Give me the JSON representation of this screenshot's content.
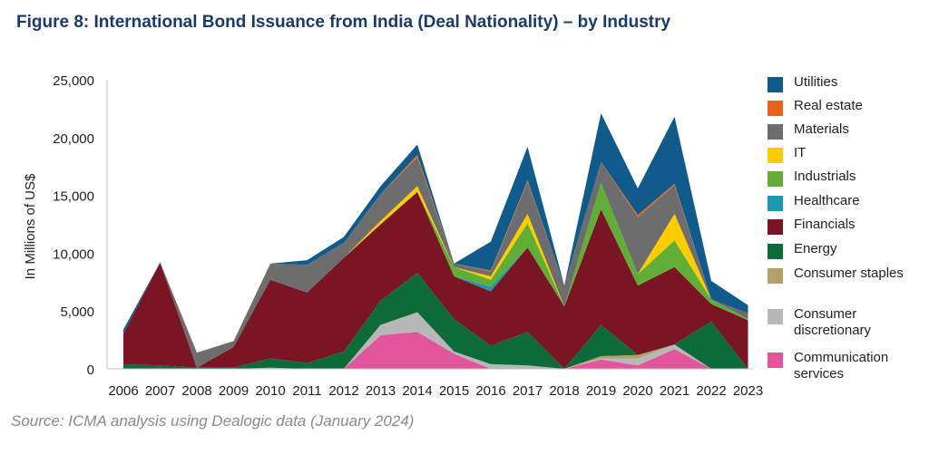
{
  "title": "Figure 8: International Bond Issuance from India (Deal Nationality) – by Industry",
  "source": "Source: ICMA analysis using Dealogic data (January 2024)",
  "chart_data": {
    "type": "area",
    "stacked": true,
    "ylabel": "In Millions of US$",
    "ylim": [
      0,
      25000
    ],
    "yticks": [
      0,
      5000,
      10000,
      15000,
      20000,
      25000
    ],
    "ytick_labels": [
      "0",
      "5,000",
      "10,000",
      "15,000",
      "20,000",
      "25,000"
    ],
    "legend_position": "right",
    "x": [
      "2006",
      "2007",
      "2008",
      "2009",
      "2010",
      "2011",
      "2012",
      "2013",
      "2014",
      "2015",
      "2016",
      "2017",
      "2018",
      "2019",
      "2020",
      "2021",
      "2022",
      "2023"
    ],
    "series": [
      {
        "name": "Communication services",
        "color": "#e0559b",
        "values": [
          0,
          0,
          0,
          0,
          0,
          0,
          0,
          2900,
          3200,
          1300,
          0,
          0,
          0,
          800,
          300,
          1700,
          0,
          0
        ]
      },
      {
        "name": "Consumer discretionary",
        "color": "#b7b7b7",
        "values": [
          0,
          0,
          0,
          0,
          100,
          0,
          0,
          900,
          1700,
          200,
          400,
          300,
          0,
          100,
          600,
          400,
          0,
          0
        ]
      },
      {
        "name": "Consumer staples",
        "color": "#b29f6a",
        "values": [
          0,
          0,
          0,
          0,
          0,
          0,
          0,
          0,
          0,
          0,
          0,
          0,
          0,
          200,
          300,
          0,
          0,
          0
        ]
      },
      {
        "name": "Energy",
        "color": "#0d6b3a",
        "values": [
          400,
          300,
          100,
          100,
          800,
          500,
          1500,
          2100,
          3400,
          2800,
          1600,
          2900,
          0,
          2700,
          0,
          0,
          4100,
          0
        ]
      },
      {
        "name": "Financials",
        "color": "#7a1623",
        "values": [
          2600,
          8900,
          0,
          1800,
          6800,
          6100,
          8100,
          6600,
          7000,
          3700,
          4700,
          7300,
          5400,
          10000,
          6000,
          6700,
          1500,
          4200
        ]
      },
      {
        "name": "Healthcare",
        "color": "#1d97b1",
        "values": [
          0,
          0,
          0,
          0,
          0,
          0,
          0,
          0,
          0,
          0,
          400,
          0,
          0,
          0,
          0,
          0,
          0,
          0
        ]
      },
      {
        "name": "Industrials",
        "color": "#61ad35",
        "values": [
          0,
          0,
          0,
          0,
          0,
          0,
          0,
          0,
          0,
          800,
          600,
          2100,
          0,
          2300,
          1000,
          2300,
          400,
          100
        ]
      },
      {
        "name": "IT",
        "color": "#ffcc00",
        "values": [
          0,
          0,
          0,
          0,
          0,
          0,
          0,
          300,
          500,
          0,
          300,
          800,
          0,
          0,
          0,
          2300,
          0,
          0
        ]
      },
      {
        "name": "Materials",
        "color": "#6d6d6d",
        "values": [
          0,
          0,
          1300,
          500,
          1400,
          2400,
          1300,
          2300,
          2500,
          300,
          400,
          2800,
          1800,
          1800,
          4900,
          2500,
          0,
          500
        ]
      },
      {
        "name": "Real estate",
        "color": "#e8631c",
        "values": [
          0,
          0,
          0,
          0,
          0,
          0,
          0,
          0,
          200,
          0,
          100,
          100,
          0,
          0,
          200,
          100,
          0,
          0
        ]
      },
      {
        "name": "Utilities",
        "color": "#105a8c",
        "values": [
          400,
          0,
          0,
          0,
          0,
          400,
          500,
          700,
          900,
          0,
          2500,
          2900,
          0,
          4200,
          2300,
          5800,
          1600,
          700
        ]
      }
    ]
  },
  "legend": [
    {
      "label": "Utilities",
      "color": "#105a8c"
    },
    {
      "label": "Real estate",
      "color": "#e8631c"
    },
    {
      "label": "Materials",
      "color": "#6d6d6d"
    },
    {
      "label": "IT",
      "color": "#ffcc00"
    },
    {
      "label": "Industrials",
      "color": "#61ad35"
    },
    {
      "label": "Healthcare",
      "color": "#1d97b1"
    },
    {
      "label": "Financials",
      "color": "#7a1623"
    },
    {
      "label": "Energy",
      "color": "#0d6b3a"
    },
    {
      "label": "Consumer staples",
      "color": "#b29f6a"
    },
    {
      "label": "Consumer discretionary",
      "color": "#b7b7b7"
    },
    {
      "label": "Communication services",
      "color": "#e0559b"
    }
  ]
}
